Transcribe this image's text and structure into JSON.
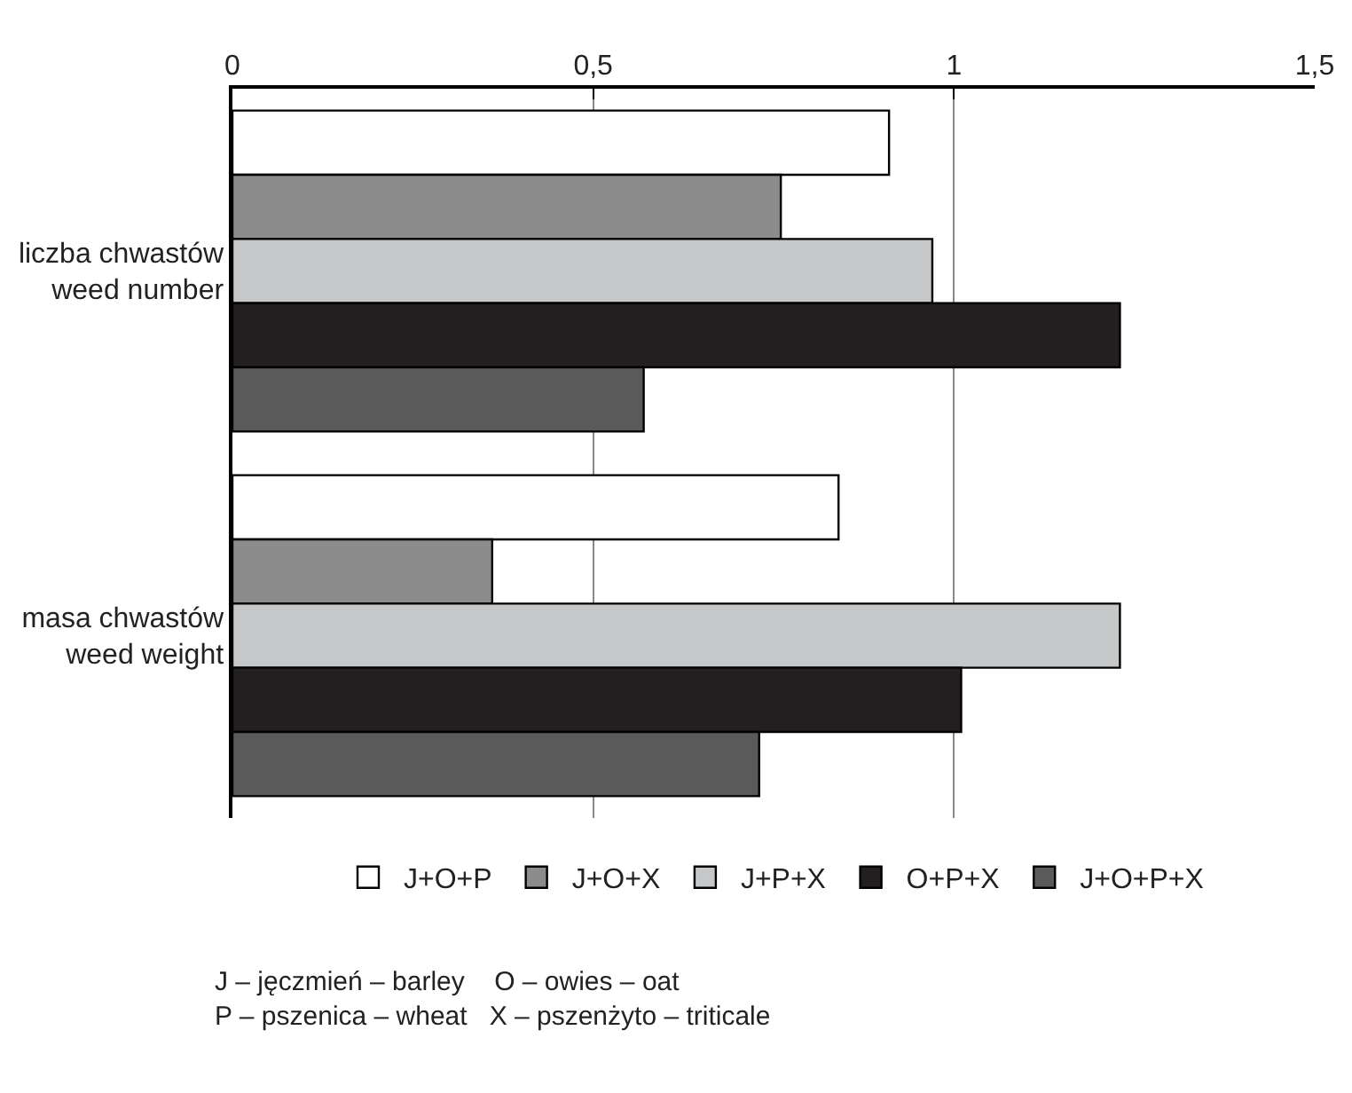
{
  "chart_data": {
    "type": "bar",
    "orientation": "horizontal",
    "categories": [
      "liczba chwastów\nweed number",
      "masa chwastów\nweed weight"
    ],
    "series": [
      {
        "name": "J+O+P",
        "color": "#ffffff",
        "values": [
          0.91,
          0.84
        ]
      },
      {
        "name": "J+O+X",
        "color": "#8c8c8c",
        "values": [
          0.76,
          0.36
        ]
      },
      {
        "name": "J+P+X",
        "color": "#c6c7c9",
        "values": [
          0.97,
          1.23
        ]
      },
      {
        "name": "O+P+X",
        "color": "#231f20",
        "values": [
          1.23,
          1.01
        ]
      },
      {
        "name": "J+O+P+X",
        "color": "#5a5a5a",
        "values": [
          0.57,
          0.73
        ]
      }
    ],
    "xlim": [
      0,
      1.5
    ],
    "xticks": [
      0,
      {
        "value": 0.5,
        "label": "0,5"
      },
      1,
      {
        "value": 1.5,
        "label": "1,5"
      }
    ],
    "grid": "x",
    "legend": "bottom",
    "annotations": [
      "J – jęczmień – barley    O – owies – oat\nP – pszenica – wheat   X – pszenżyto – triticale"
    ]
  }
}
